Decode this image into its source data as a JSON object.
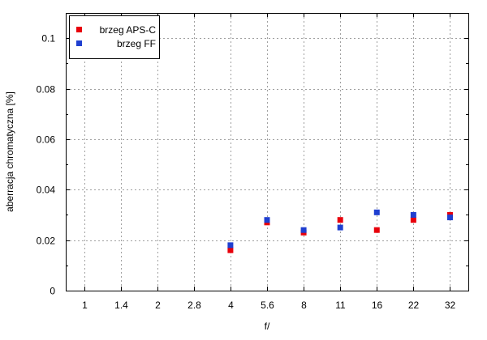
{
  "chart_data": {
    "type": "scatter",
    "xlabel": "f/",
    "ylabel": "aberracja chromatyczna [%]",
    "categories": [
      "1",
      "1.4",
      "2",
      "2.8",
      "4",
      "5.6",
      "8",
      "11",
      "16",
      "22",
      "32"
    ],
    "ylim": [
      0,
      0.11
    ],
    "yticks": [
      0,
      0.02,
      0.04,
      0.06,
      0.08,
      0.1
    ],
    "yticks_labels": [
      "0",
      "0.02",
      "0.04",
      "0.06",
      "0.08",
      "0.1"
    ],
    "grid": true,
    "legend_position": "top-left",
    "series": [
      {
        "name": "brzeg APS-C",
        "color": "#e8000b",
        "points": [
          {
            "x": "4",
            "y": 0.016
          },
          {
            "x": "5.6",
            "y": 0.027
          },
          {
            "x": "8",
            "y": 0.023
          },
          {
            "x": "11",
            "y": 0.028
          },
          {
            "x": "16",
            "y": 0.024
          },
          {
            "x": "22",
            "y": 0.028
          },
          {
            "x": "32",
            "y": 0.03
          }
        ]
      },
      {
        "name": "brzeg FF",
        "color": "#1f3fd0",
        "points": [
          {
            "x": "4",
            "y": 0.018
          },
          {
            "x": "5.6",
            "y": 0.028
          },
          {
            "x": "8",
            "y": 0.024
          },
          {
            "x": "11",
            "y": 0.025
          },
          {
            "x": "16",
            "y": 0.031
          },
          {
            "x": "22",
            "y": 0.03
          },
          {
            "x": "32",
            "y": 0.029
          }
        ]
      }
    ]
  }
}
